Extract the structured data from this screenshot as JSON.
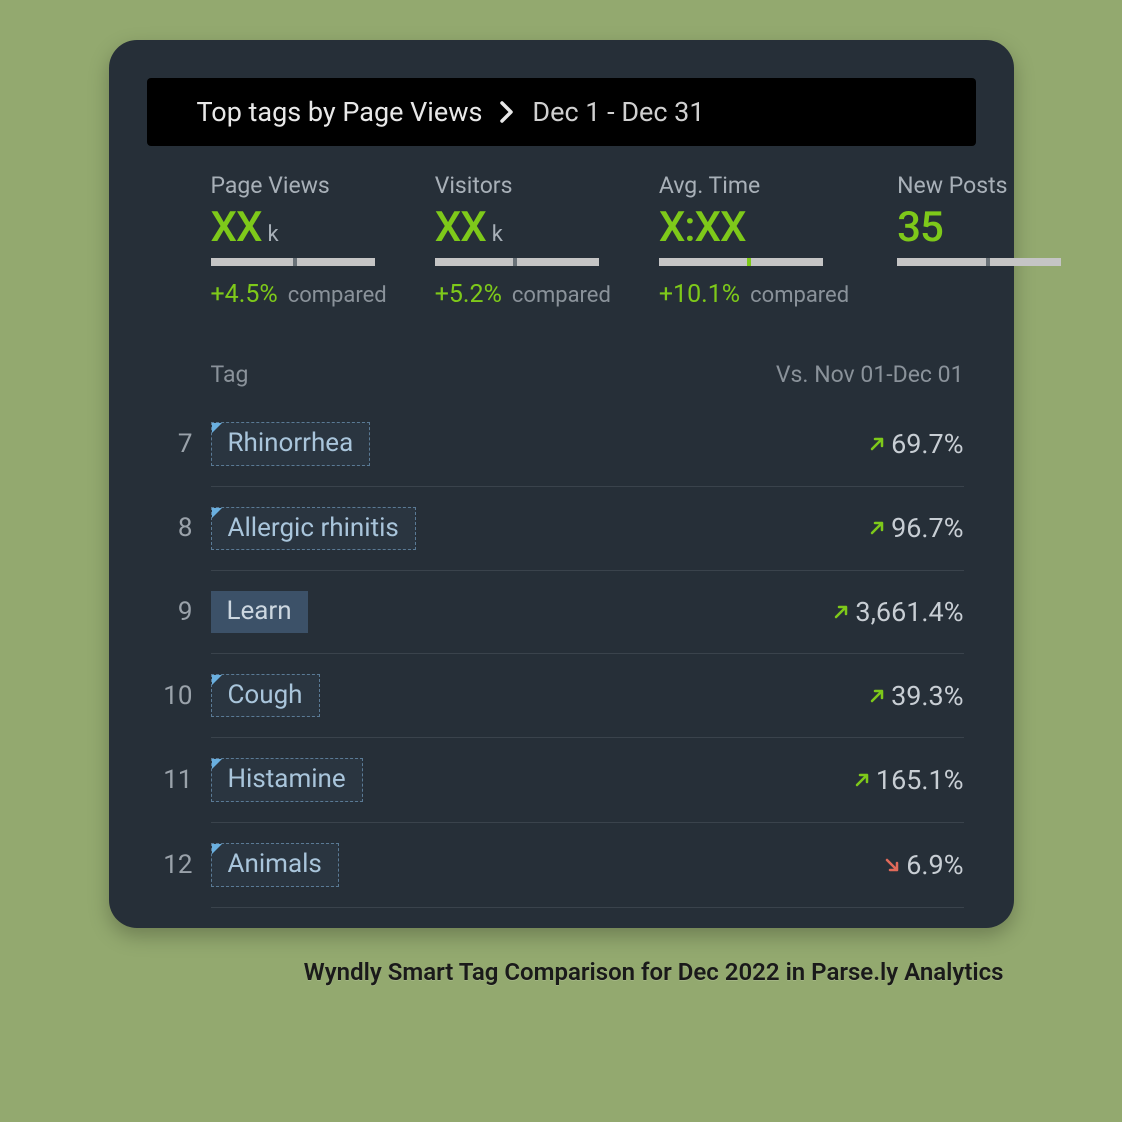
{
  "colors": {
    "page_bg": "#93a96f",
    "panel_bg": "#262f38",
    "header_bg": "#000000",
    "accent_green": "#7ec91a",
    "text_muted": "#8a929a",
    "text_light": "#c8ced4",
    "trend_up": "#7ec91a",
    "trend_down": "#e06a5a",
    "bar_bg": "#c5c5c5",
    "bar_marker": "#6a7278",
    "bar_marker_green": "#7ec91a",
    "row_divider": "#3a434c",
    "tag_border": "#5a7a95",
    "tag_corner": "#6ab0e0"
  },
  "header": {
    "title": "Top tags by Page Views",
    "date_range": "Dec 1 - Dec 31"
  },
  "stats": [
    {
      "label": "Page Views",
      "value": "XX",
      "suffix": "k",
      "change": "+4.5%",
      "compared": "compared",
      "bar_marker_pct": 50,
      "marker_color": "#6a7278"
    },
    {
      "label": "Visitors",
      "value": "XX",
      "suffix": "k",
      "change": "+5.2%",
      "compared": "compared",
      "bar_marker_pct": 48,
      "marker_color": "#6a7278"
    },
    {
      "label": "Avg. Time",
      "value": "X:XX",
      "suffix": "",
      "change": "+10.1%",
      "compared": "compared",
      "bar_marker_pct": 54,
      "marker_color": "#7ec91a"
    },
    {
      "label": "New Posts",
      "value": "35",
      "suffix": "",
      "change": "",
      "compared": "",
      "bar_marker_pct": 54,
      "marker_color": "#6a7278"
    }
  ],
  "table": {
    "col_tag": "Tag",
    "col_vs": "Vs. Nov 01-Dec 01",
    "rows": [
      {
        "rank": "7",
        "tag": "Rhinorrhea",
        "style": "dashed",
        "direction": "up",
        "value": "69.7%"
      },
      {
        "rank": "8",
        "tag": "Allergic rhinitis",
        "style": "dashed",
        "direction": "up",
        "value": "96.7%"
      },
      {
        "rank": "9",
        "tag": "Learn",
        "style": "solid",
        "direction": "up",
        "value": "3,661.4%"
      },
      {
        "rank": "10",
        "tag": "Cough",
        "style": "dashed",
        "direction": "up",
        "value": "39.3%"
      },
      {
        "rank": "11",
        "tag": "Histamine",
        "style": "dashed",
        "direction": "up",
        "value": "165.1%"
      },
      {
        "rank": "12",
        "tag": "Animals",
        "style": "dashed",
        "direction": "down",
        "value": "6.9%"
      }
    ]
  },
  "caption": "Wyndly Smart Tag Comparison for Dec 2022 in Parse.ly Analytics"
}
